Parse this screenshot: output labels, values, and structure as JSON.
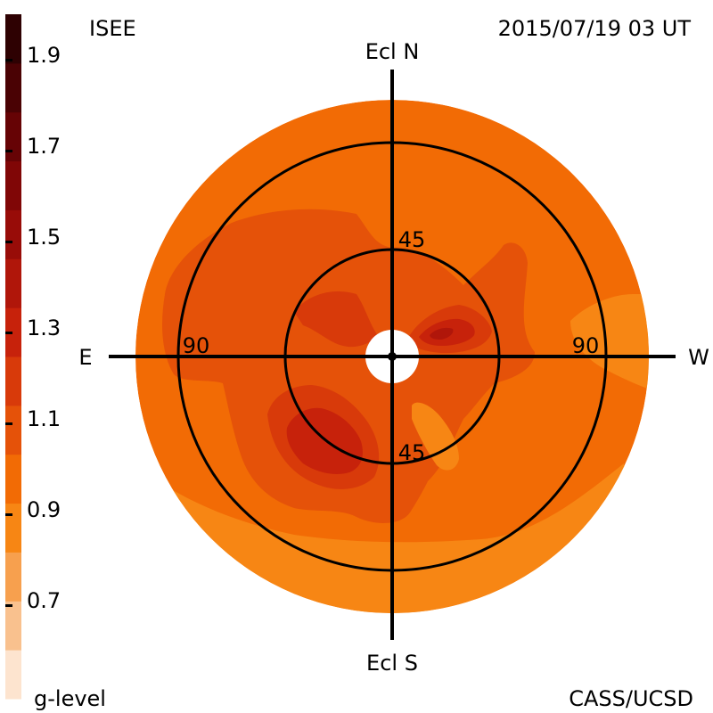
{
  "header": {
    "source": "ISEE",
    "timestamp": "2015/07/19 03 UT",
    "credit": "CASS/UCSD"
  },
  "colorbar": {
    "label": "g-level",
    "tick_labels": [
      "1.9",
      "1.7",
      "1.5",
      "1.3",
      "1.1",
      "0.9",
      "0.7"
    ],
    "tick_values": [
      1.9,
      1.7,
      1.5,
      1.3,
      1.1,
      0.9,
      0.7
    ],
    "range": [
      0.6,
      2.0
    ],
    "stops": [
      {
        "value": 0.6,
        "color": "#fde4cf"
      },
      {
        "value": 0.7,
        "color": "#f9c18e"
      },
      {
        "value": 0.8,
        "color": "#f7a04e"
      },
      {
        "value": 0.9,
        "color": "#f78614"
      },
      {
        "value": 1.0,
        "color": "#f26b05"
      },
      {
        "value": 1.1,
        "color": "#e55209"
      },
      {
        "value": 1.2,
        "color": "#d83a0a"
      },
      {
        "value": 1.3,
        "color": "#c7220b"
      },
      {
        "value": 1.4,
        "color": "#b0160a"
      },
      {
        "value": 1.5,
        "color": "#980c08"
      },
      {
        "value": 1.6,
        "color": "#800606"
      },
      {
        "value": 1.7,
        "color": "#660305"
      },
      {
        "value": 1.8,
        "color": "#4a0204"
      },
      {
        "value": 1.9,
        "color": "#2e0102"
      },
      {
        "value": 2.0,
        "color": "#170000"
      }
    ]
  },
  "sky_map": {
    "directions": {
      "north": "Ecl N",
      "south": "Ecl S",
      "east": "E",
      "west": "W"
    },
    "ring_labels": {
      "inner_top": "45",
      "inner_bottom": "45",
      "outer_left": "90",
      "outer_right": "90"
    },
    "background_color": "#f26b05",
    "colors": {
      "level_0_9": "#f78614",
      "level_1_0": "#f26b05",
      "level_1_1": "#e55209",
      "level_1_2": "#d83a0a",
      "level_1_3": "#c7220b",
      "level_1_4": "#b0160a"
    }
  },
  "chart_data": {
    "type": "heatmap",
    "title": "",
    "variable": "g-level",
    "elongation_rings_deg": [
      45,
      90
    ],
    "value_range": [
      0.6,
      2.0
    ],
    "features": [
      {
        "region": "background",
        "value": 1.0
      },
      {
        "region": "south-rim",
        "value": 0.9
      },
      {
        "region": "west-rim",
        "value": 0.9
      },
      {
        "region": "south-east of sun",
        "value": 1.3
      },
      {
        "region": "north-west of sun",
        "value": 1.4
      },
      {
        "region": "north-east lobe",
        "value": 1.1
      }
    ]
  }
}
